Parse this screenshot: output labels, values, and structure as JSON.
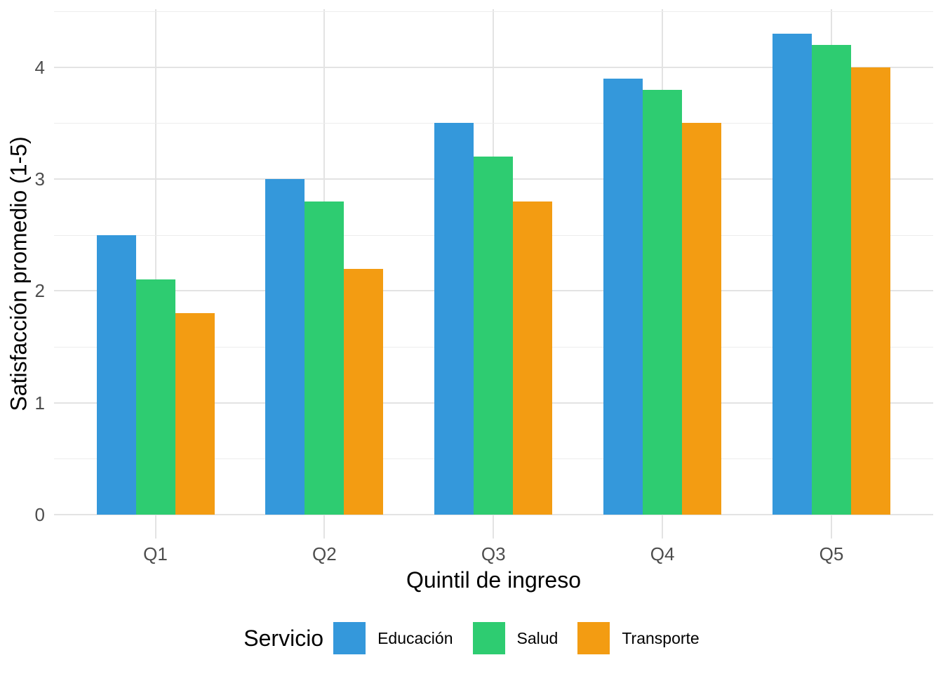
{
  "chart_data": {
    "type": "bar",
    "title": "",
    "categories": [
      "Q1",
      "Q2",
      "Q3",
      "Q4",
      "Q5"
    ],
    "series": [
      {
        "name": "Educación",
        "color": "#3498DB",
        "values": [
          2.5,
          3.0,
          3.5,
          3.9,
          4.3
        ]
      },
      {
        "name": "Salud",
        "color": "#2ECC71",
        "values": [
          2.1,
          2.8,
          3.2,
          3.8,
          4.2
        ]
      },
      {
        "name": "Transporte",
        "color": "#F39C12",
        "values": [
          1.8,
          2.2,
          2.8,
          3.5,
          4.0
        ]
      }
    ],
    "xlabel": "Quintil de ingreso",
    "ylabel": "Satisfacción promedio (1-5)",
    "y_ticks": [
      0,
      1,
      2,
      3,
      4
    ],
    "y_minor_ticks": [
      0.5,
      1.5,
      2.5,
      3.5,
      4.5
    ],
    "ylim": [
      0,
      4.5
    ],
    "grid": true,
    "legend_title": "Servicio",
    "legend_position": "bottom",
    "colors": {
      "background": "#FFFFFF",
      "grid_major": "#E3E3E3",
      "grid_minor": "#EDEDED",
      "tick_text": "#4D4D4D",
      "title_text": "#000000"
    }
  }
}
